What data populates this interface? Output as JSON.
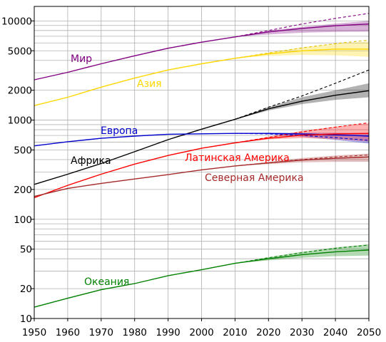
{
  "chart_data": {
    "type": "line",
    "title": "",
    "xlabel": "",
    "ylabel": "",
    "y_scale": "log",
    "xlim": [
      1950,
      2050
    ],
    "ylim": [
      10,
      14000
    ],
    "grid": true,
    "x_ticks": [
      1950,
      1960,
      1970,
      1980,
      1990,
      2000,
      2010,
      2020,
      2030,
      2040,
      2050
    ],
    "x_tick_labels": [
      "1950",
      "1960",
      "1970",
      "1980",
      "1990",
      "2000",
      "2010",
      "2020",
      "2030",
      "2040",
      "2050"
    ],
    "y_ticks": [
      10,
      20,
      50,
      100,
      200,
      500,
      1000,
      2000,
      5000,
      10000
    ],
    "y_tick_labels": [
      "10",
      "20",
      "50",
      "100",
      "200",
      "500",
      "1000",
      "2000",
      "5000",
      "10000"
    ],
    "series": [
      {
        "name": "Мир",
        "key": "world",
        "color": "#800080",
        "x": [
          1950,
          1960,
          1970,
          1980,
          1990,
          2000,
          2010,
          2020,
          2030,
          2040,
          2050
        ],
        "y": [
          2550,
          3030,
          3700,
          4450,
          5300,
          6100,
          6900,
          7750,
          8400,
          8950,
          9300
        ],
        "projection_upper": {
          "x": [
            2010,
            2020,
            2030,
            2040,
            2050
          ],
          "y": [
            6900,
            8000,
            9300,
            10600,
            11900
          ]
        },
        "band": {
          "x": [
            2010,
            2020,
            2030,
            2040,
            2050
          ],
          "low": [
            6900,
            7300,
            7600,
            7750,
            7800
          ],
          "high": [
            6900,
            8000,
            8700,
            9400,
            10000
          ]
        }
      },
      {
        "name": "Азия",
        "key": "asia",
        "color": "#ffd700",
        "x": [
          1950,
          1960,
          1970,
          1980,
          1990,
          2000,
          2010,
          2020,
          2030,
          2040,
          2050
        ],
        "y": [
          1400,
          1700,
          2150,
          2650,
          3200,
          3700,
          4200,
          4650,
          5000,
          5200,
          5200
        ],
        "projection_upper": {
          "x": [
            2010,
            2020,
            2030,
            2040,
            2050
          ],
          "y": [
            4200,
            4750,
            5350,
            5900,
            6400
          ]
        },
        "band": {
          "x": [
            2010,
            2020,
            2030,
            2040,
            2050
          ],
          "low": [
            4200,
            4450,
            4550,
            4500,
            4350
          ],
          "high": [
            4200,
            4800,
            5400,
            5900,
            6200
          ]
        }
      },
      {
        "name": "Африка",
        "key": "africa",
        "color": "#000000",
        "x": [
          1950,
          1960,
          1970,
          1980,
          1990,
          2000,
          2010,
          2020,
          2030,
          2040,
          2050
        ],
        "y": [
          225,
          285,
          365,
          480,
          635,
          810,
          1020,
          1300,
          1550,
          1780,
          1980
        ],
        "projection_upper": {
          "x": [
            2010,
            2020,
            2030,
            2040,
            2050
          ],
          "y": [
            1020,
            1350,
            1750,
            2350,
            3200
          ]
        },
        "band": {
          "x": [
            2010,
            2020,
            2030,
            2040,
            2050
          ],
          "low": [
            1020,
            1250,
            1450,
            1600,
            1700
          ],
          "high": [
            1020,
            1350,
            1700,
            2000,
            2350
          ]
        }
      },
      {
        "name": "Европа",
        "key": "europe",
        "color": "#0000cd",
        "x": [
          1950,
          1960,
          1970,
          1980,
          1990,
          2000,
          2010,
          2020,
          2030,
          2040,
          2050
        ],
        "y": [
          550,
          605,
          655,
          690,
          720,
          728,
          735,
          735,
          725,
          710,
          690
        ],
        "projection_upper": {
          "x": [
            2010,
            2020,
            2030,
            2040,
            2050
          ],
          "y": [
            735,
            725,
            700,
            665,
            625
          ]
        },
        "band": {
          "x": [
            2010,
            2020,
            2030,
            2040,
            2050
          ],
          "low": [
            735,
            720,
            680,
            630,
            580
          ],
          "high": [
            735,
            745,
            745,
            745,
            740
          ]
        }
      },
      {
        "name": "Латинская Америка",
        "key": "latam",
        "color": "#ff0000",
        "x": [
          1950,
          1960,
          1970,
          1980,
          1990,
          2000,
          2010,
          2020,
          2030,
          2040,
          2050
        ],
        "y": [
          165,
          220,
          285,
          360,
          440,
          520,
          590,
          655,
          705,
          725,
          735
        ],
        "projection_upper": {
          "x": [
            2010,
            2020,
            2030,
            2040,
            2050
          ],
          "y": [
            590,
            670,
            760,
            850,
            940
          ]
        },
        "band": {
          "x": [
            2010,
            2020,
            2030,
            2040,
            2050
          ],
          "low": [
            590,
            640,
            660,
            640,
            610
          ],
          "high": [
            590,
            680,
            780,
            860,
            930
          ]
        }
      },
      {
        "name": "Северная Америка",
        "key": "namerica",
        "color": "#a52a2a",
        "x": [
          1950,
          1960,
          1970,
          1980,
          1990,
          2000,
          2010,
          2020,
          2030,
          2040,
          2050
        ],
        "y": [
          170,
          205,
          230,
          255,
          282,
          315,
          345,
          370,
          395,
          412,
          425
        ],
        "projection_upper": {
          "x": [
            2010,
            2020,
            2030,
            2040,
            2050
          ],
          "y": [
            345,
            372,
            400,
            425,
            445
          ]
        },
        "band": {
          "x": [
            2010,
            2020,
            2030,
            2040,
            2050
          ],
          "low": [
            345,
            360,
            375,
            380,
            380
          ],
          "high": [
            345,
            380,
            415,
            440,
            460
          ]
        }
      },
      {
        "name": "Океания",
        "key": "oceania",
        "color": "#008000",
        "x": [
          1950,
          1960,
          1970,
          1980,
          1990,
          2000,
          2010,
          2020,
          2030,
          2040,
          2050
        ],
        "y": [
          13,
          16,
          19.5,
          22.5,
          27,
          31,
          36,
          40,
          44,
          47,
          49
        ],
        "projection_upper": {
          "x": [
            2010,
            2020,
            2030,
            2040,
            2050
          ],
          "y": [
            36,
            41,
            46,
            51,
            55
          ]
        },
        "band": {
          "x": [
            2010,
            2020,
            2030,
            2040,
            2050
          ],
          "low": [
            36,
            38.5,
            41,
            42.5,
            43
          ],
          "high": [
            36,
            41.5,
            47,
            52,
            56
          ]
        }
      }
    ]
  }
}
